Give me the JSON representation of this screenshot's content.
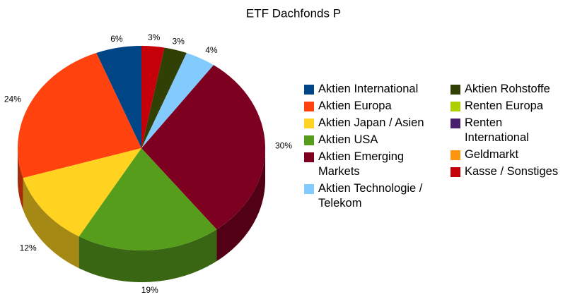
{
  "chart_data": {
    "type": "pie",
    "title": "ETF Dachfonds P",
    "categories": [
      "Aktien International",
      "Aktien Europa",
      "Aktien Japan / Asien",
      "Aktien USA",
      "Aktien Emerging Markets",
      "Aktien Technologie / Telekom",
      "Aktien Rohstoffe",
      "Renten Europa",
      "Renten International",
      "Geldmarkt",
      "Kasse / Sonstiges"
    ],
    "values": [
      6,
      24,
      12,
      19,
      30,
      4,
      3,
      0,
      0,
      0,
      3
    ],
    "value_labels": [
      "6%",
      "24%",
      "12%",
      "19%",
      "30%",
      "4%",
      "3%",
      null,
      null,
      null,
      "3%"
    ],
    "colors": [
      "#004586",
      "#ff420e",
      "#ffd320",
      "#579d1c",
      "#7e0021",
      "#83caff",
      "#314004",
      "#aecf00",
      "#4b1f6f",
      "#ff950e",
      "#c5000b"
    ]
  }
}
